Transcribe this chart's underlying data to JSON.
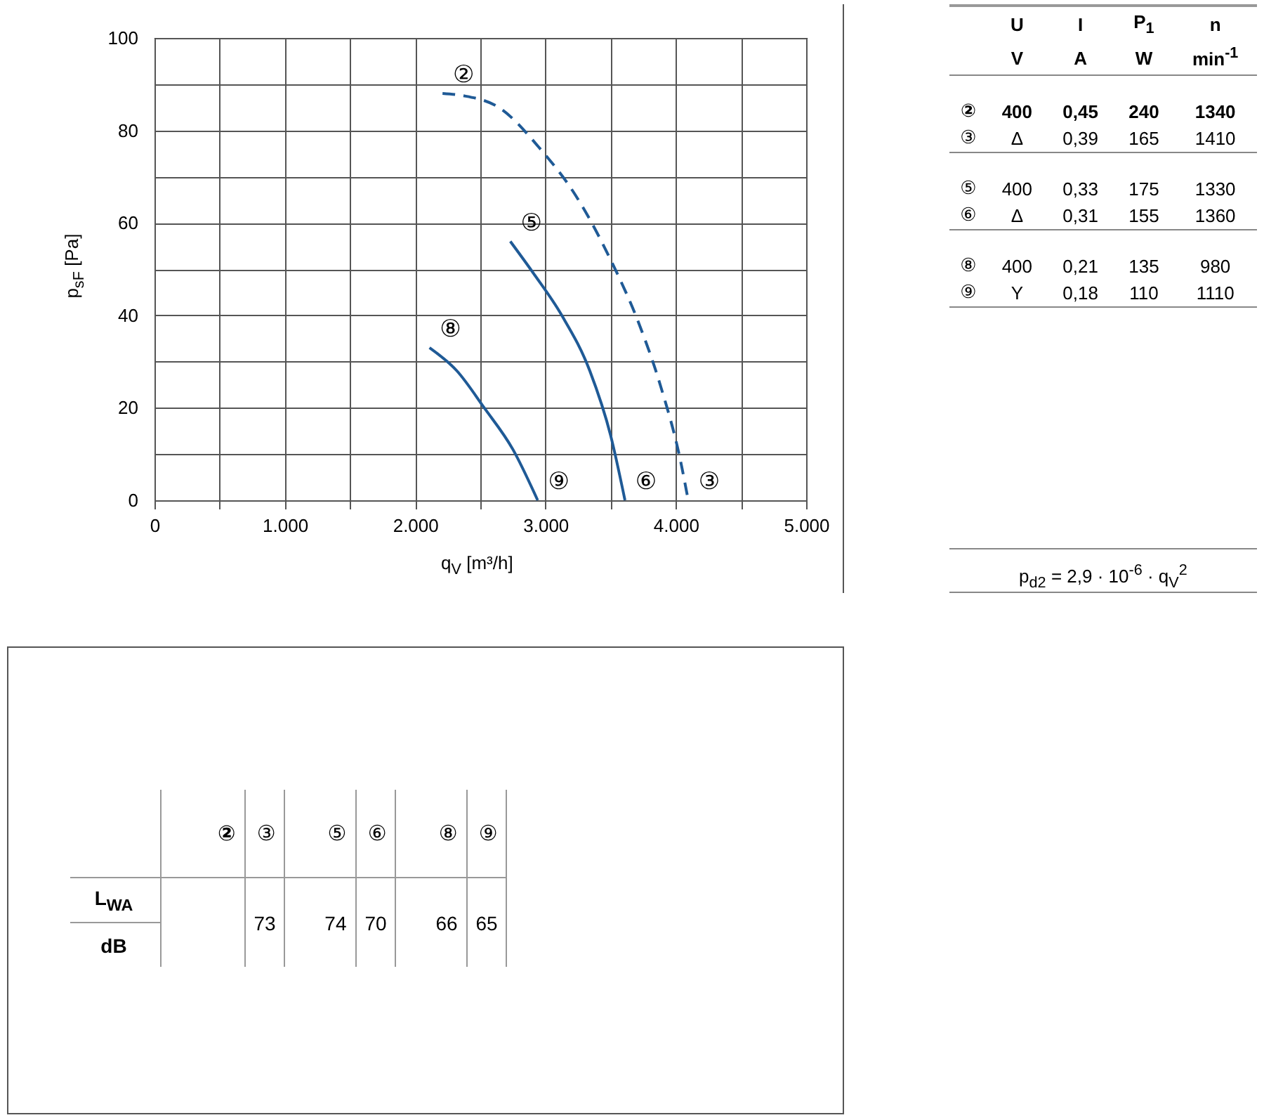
{
  "chart_data": [
    {
      "type": "line",
      "xlabel": "q$_{V}$ [m³/h]",
      "ylabel": "p$_{sF}$ [Pa]",
      "xlim": [
        0,
        5000
      ],
      "ylim": [
        0,
        100
      ],
      "xticks": [
        0,
        {
          "value": 500,
          "label": null
        },
        {
          "value": 1000,
          "label": "1.000"
        },
        {
          "value": 1500,
          "label": null
        },
        {
          "value": 2000,
          "label": "2.000"
        },
        {
          "value": 2500,
          "label": null
        },
        {
          "value": 3000,
          "label": "3.000"
        },
        {
          "value": 3500,
          "label": null
        },
        {
          "value": 4000,
          "label": "4.000"
        },
        {
          "value": 4500,
          "label": null
        },
        {
          "value": 5000,
          "label": "5.000"
        }
      ],
      "yticks": [
        0,
        {
          "value": 10,
          "label": null
        },
        20,
        {
          "value": 30,
          "label": null
        },
        40,
        {
          "value": 50,
          "label": null
        },
        60,
        {
          "value": 70,
          "label": null
        },
        80,
        {
          "value": 90,
          "label": null
        },
        100
      ],
      "grid": true,
      "marker": "none",
      "series": [
        {
          "color": "#1f5a96",
          "line_style": "dashed",
          "x": [
            2210,
            2370,
            2640,
            2960,
            3230,
            3500,
            3720,
            3880,
            4040,
            4095
          ],
          "values": [
            88,
            87.5,
            85,
            76,
            66,
            52,
            38,
            25,
            8,
            0
          ]
        },
        {
          "color": "#1f5a96",
          "line_style": "solid",
          "x": [
            2730,
            2910,
            3125,
            3340,
            3500,
            3610
          ],
          "values": [
            56,
            49,
            40,
            28,
            14,
            0
          ]
        },
        {
          "color": "#1f5a96",
          "line_style": "solid",
          "x": [
            2110,
            2320,
            2530,
            2750,
            2940
          ],
          "values": [
            33,
            28,
            20,
            11,
            0
          ]
        }
      ],
      "annotations": [
        {
          "text": "②",
          "x": 2210,
          "y": 88
        },
        {
          "text": "③",
          "x": 4095,
          "y": 0
        },
        {
          "text": "⑤",
          "x": 2730,
          "y": 56
        },
        {
          "text": "⑥",
          "x": 3610,
          "y": 0
        },
        {
          "text": "⑧",
          "x": 2110,
          "y": 33
        },
        {
          "text": "⑨",
          "x": 2940,
          "y": 0
        }
      ]
    },
    {
      "type": "other",
      "annotations": [
        "U",
        "I",
        "P$_{1}$",
        "n",
        "V",
        "A",
        "W",
        "min$^{-1}$",
        "②",
        "400",
        "0,45",
        "240",
        "1340",
        "③",
        "Δ",
        "0,39",
        "165",
        "1410",
        "⑤",
        "400",
        "0,33",
        "175",
        "1330",
        "⑥",
        "Δ",
        "0,31",
        "155",
        "1360",
        "⑧",
        "400",
        "0,21",
        "135",
        "980",
        "⑨",
        "Y",
        "0,18",
        "110",
        "1110",
        "p$_{d2}$ = 2,9 · 10$^{-6}$ · q$_{V}$$^{2}$"
      ]
    },
    {
      "type": "other",
      "annotations": [
        "②",
        "③",
        "⑤",
        "⑥",
        "⑧",
        "⑨",
        "L$_{WA}$",
        "dB",
        "73",
        "74",
        "70",
        "66",
        "65"
      ]
    }
  ]
}
